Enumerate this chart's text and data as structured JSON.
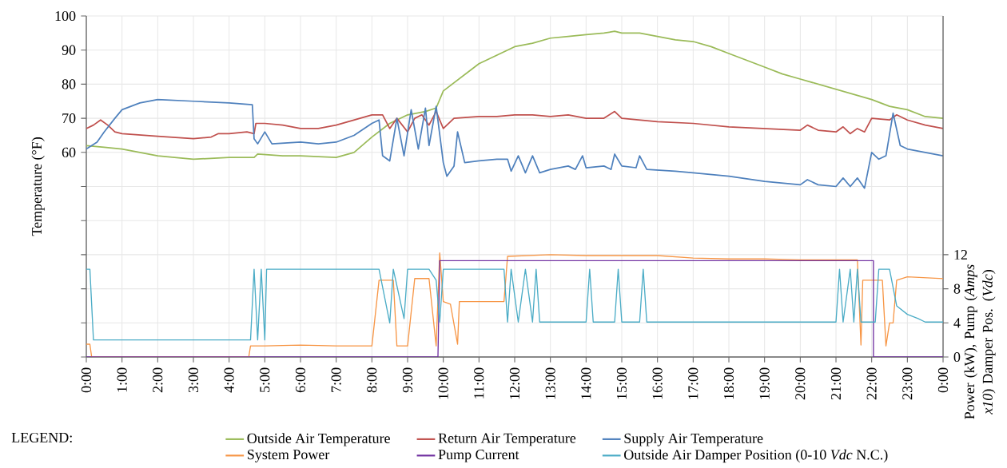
{
  "chart_data": {
    "type": "line",
    "ylabel": "Temperature (°F)",
    "y2label": "Power (kW), Pump (*Amps x10*) Damper Pos. (*Vdc*)",
    "legend_title": "LEGEND:",
    "legend": "bottom",
    "grid": true,
    "xlim": [
      0,
      24
    ],
    "xticks": [
      {
        "value": 0,
        "label": "0:00"
      },
      {
        "value": 1,
        "label": "1:00"
      },
      {
        "value": 2,
        "label": "2:00"
      },
      {
        "value": 3,
        "label": "3:00"
      },
      {
        "value": 4,
        "label": "4:00"
      },
      {
        "value": 5,
        "label": "5:00"
      },
      {
        "value": 6,
        "label": "6:00"
      },
      {
        "value": 7,
        "label": "7:00"
      },
      {
        "value": 8,
        "label": "8:00"
      },
      {
        "value": 9,
        "label": "9:00"
      },
      {
        "value": 10,
        "label": "10:00"
      },
      {
        "value": 11,
        "label": "11:00"
      },
      {
        "value": 12,
        "label": "12:00"
      },
      {
        "value": 13,
        "label": "13:00"
      },
      {
        "value": 14,
        "label": "14:00"
      },
      {
        "value": 15,
        "label": "15:00"
      },
      {
        "value": 16,
        "label": "16:00"
      },
      {
        "value": 17,
        "label": "17:00"
      },
      {
        "value": 18,
        "label": "18:00"
      },
      {
        "value": 19,
        "label": "19:00"
      },
      {
        "value": 20,
        "label": "20:00"
      },
      {
        "value": 21,
        "label": "21:00"
      },
      {
        "value": 22,
        "label": "22:00"
      },
      {
        "value": 23,
        "label": "23:00"
      },
      {
        "value": 24,
        "label": "0:00"
      }
    ],
    "ylim": [
      0,
      100
    ],
    "yticks": [
      {
        "value": 0,
        "label": null
      },
      {
        "value": 10,
        "label": null
      },
      {
        "value": 20,
        "label": null
      },
      {
        "value": 30,
        "label": null
      },
      {
        "value": 40,
        "label": null
      },
      {
        "value": 50,
        "label": null
      },
      60,
      70,
      80,
      90,
      100
    ],
    "y2lim": [
      0,
      40
    ],
    "y2ticks": [
      0,
      4,
      8,
      12
    ],
    "series": [
      {
        "name": "Outside Air Temperature",
        "color": "#9bbb59",
        "x": [
          0,
          0.5,
          1,
          2,
          3,
          4,
          4.7,
          4.8,
          5.5,
          6,
          7,
          7.5,
          8,
          8.5,
          9,
          9.5,
          9.8,
          10,
          10.5,
          11,
          11.5,
          12,
          12.5,
          13,
          13.5,
          14,
          14.5,
          14.8,
          15,
          15.5,
          16,
          16.5,
          17,
          17.5,
          18,
          18.5,
          19,
          19.5,
          20,
          20.5,
          21,
          21.5,
          22,
          22.5,
          23,
          23.5,
          24
        ],
        "values": [
          62,
          61.5,
          61,
          59,
          58,
          58.5,
          58.5,
          59.5,
          59,
          59,
          58.5,
          60,
          64.5,
          68.5,
          71,
          72,
          73,
          78,
          82,
          86,
          88.5,
          91,
          92,
          93.5,
          94,
          94.5,
          95,
          95.5,
          95,
          95,
          94,
          93,
          92.5,
          91,
          89,
          87,
          85,
          83,
          81.5,
          80,
          78.5,
          77,
          75.5,
          73.5,
          72.5,
          70.5,
          70
        ]
      },
      {
        "name": "Return Air Temperature",
        "color": "#c0504d",
        "x": [
          0,
          0.2,
          0.4,
          0.6,
          0.8,
          1,
          2,
          3,
          3.5,
          3.7,
          4,
          4.5,
          4.7,
          4.75,
          5,
          5.5,
          6,
          6.5,
          7,
          7.5,
          8,
          8.3,
          8.5,
          8.7,
          9,
          9.2,
          9.4,
          9.6,
          9.8,
          10,
          10.3,
          11,
          11.5,
          12,
          12.5,
          13,
          13.5,
          14,
          14.5,
          14.8,
          15,
          15.5,
          16,
          17,
          18,
          19,
          20,
          20.2,
          20.5,
          21,
          21.2,
          21.4,
          21.6,
          21.8,
          22,
          22.5,
          22.7,
          23,
          23.5,
          24
        ],
        "values": [
          67,
          68,
          69.5,
          68,
          66,
          65.5,
          64.7,
          64,
          64.5,
          65.5,
          65.5,
          66,
          65.5,
          68.5,
          68.5,
          68,
          67,
          67,
          68,
          69.5,
          71,
          71,
          67,
          70,
          66,
          70,
          71,
          68,
          72,
          67,
          70,
          70.5,
          70.5,
          71,
          71,
          70.5,
          71,
          70,
          70,
          72,
          70,
          69.5,
          69,
          68.5,
          67.5,
          67,
          66.5,
          68,
          66.5,
          66,
          67.5,
          65.5,
          67,
          66,
          70,
          69.5,
          71,
          69.5,
          68,
          67
        ]
      },
      {
        "name": "Supply Air Temperature",
        "color": "#4f81bd",
        "x": [
          0,
          0.3,
          0.5,
          0.8,
          1,
          1.5,
          2,
          3,
          4,
          4.65,
          4.7,
          4.8,
          5,
          5.2,
          6,
          6.5,
          7,
          7.5,
          8,
          8.2,
          8.3,
          8.5,
          8.7,
          8.9,
          9.1,
          9.3,
          9.5,
          9.6,
          9.8,
          10,
          10.1,
          10.3,
          10.4,
          10.6,
          11,
          11.5,
          11.8,
          11.9,
          12.1,
          12.3,
          12.5,
          12.7,
          13,
          13.5,
          13.7,
          13.9,
          14,
          14.5,
          14.7,
          14.8,
          15,
          15.4,
          15.5,
          15.7,
          16.5,
          17,
          18,
          19,
          20,
          20.2,
          20.5,
          21,
          21.2,
          21.4,
          21.6,
          21.8,
          22,
          22.2,
          22.4,
          22.6,
          22.8,
          23,
          23.5,
          24
        ],
        "values": [
          61,
          63,
          66,
          70,
          72.5,
          74.5,
          75.5,
          75,
          74.5,
          74,
          64,
          62.5,
          66,
          62.5,
          63,
          62.5,
          63,
          65,
          68.5,
          69.5,
          59,
          57.5,
          70,
          59,
          72.5,
          61,
          73,
          62,
          73.5,
          57,
          53,
          56,
          66,
          57,
          57.5,
          58,
          58,
          54.5,
          59,
          54,
          59,
          54,
          55,
          56,
          55,
          59,
          55.5,
          56,
          55,
          59.5,
          56,
          55.5,
          59,
          55,
          54.5,
          54,
          53,
          51.5,
          50.5,
          52,
          50.5,
          50,
          52.5,
          50,
          52.5,
          49.5,
          60,
          58,
          59,
          71.5,
          62,
          61,
          60,
          59
        ]
      },
      {
        "name": "System Power",
        "color": "#f79646",
        "axis": "y2",
        "x": [
          0,
          0.1,
          0.15,
          4.55,
          4.6,
          5,
          6,
          7,
          8,
          8.2,
          8.6,
          8.7,
          9,
          9.2,
          9.6,
          9.8,
          9.9,
          10,
          10.2,
          10.4,
          10.45,
          11,
          11.7,
          11.8,
          13,
          14,
          15,
          16,
          17,
          18,
          19,
          20,
          21,
          21.6,
          21.7,
          21.75,
          22.3,
          22.4,
          22.5,
          22.6,
          22.7,
          23,
          24
        ],
        "values": [
          1.5,
          1.5,
          0,
          0,
          1.3,
          1.3,
          1.4,
          1.3,
          1.3,
          9,
          9,
          1.3,
          1.3,
          9.2,
          9.2,
          1.3,
          12.2,
          6.5,
          6.2,
          1.5,
          6.5,
          6.5,
          6.5,
          11.8,
          12,
          11.9,
          11.9,
          11.9,
          11.6,
          11.5,
          11.5,
          11.4,
          11.4,
          11.4,
          1.4,
          9,
          9,
          1.3,
          4,
          4,
          9,
          9.4,
          9.2
        ]
      },
      {
        "name": "Pump Current",
        "color": "#7030a0",
        "axis": "y2",
        "x": [
          0,
          9.85,
          9.9,
          22.05,
          22.05,
          24
        ],
        "values": [
          0,
          0,
          11.3,
          11.3,
          0,
          0
        ]
      },
      {
        "name": "Outside Air Damper Position (0-10 *Vdc* N.C.)",
        "color": "#4bacc6",
        "axis": "y2",
        "x": [
          0,
          0.1,
          0.2,
          4.6,
          4.7,
          4.8,
          4.9,
          5,
          5.05,
          8.2,
          8.5,
          8.6,
          8.9,
          9,
          9.6,
          9.8,
          9.9,
          10,
          11.7,
          11.8,
          11.9,
          12.1,
          12.3,
          12.5,
          12.6,
          12.7,
          14,
          14.1,
          14.2,
          14.8,
          14.9,
          15,
          15.5,
          15.6,
          15.7,
          21,
          21.1,
          21.2,
          21.4,
          21.5,
          21.6,
          21.7,
          22.1,
          22.2,
          22.5,
          22.7,
          23,
          23.3,
          23.5,
          24
        ],
        "values": [
          10.3,
          10.3,
          2,
          2,
          10.3,
          2,
          10.3,
          2,
          10.3,
          10.3,
          4,
          10.3,
          4.5,
          10.3,
          10.3,
          9,
          4.1,
          10.3,
          10.3,
          4.1,
          10.3,
          4.1,
          10.3,
          4.1,
          10.3,
          4.1,
          4.1,
          10.3,
          4.1,
          4.1,
          10.3,
          4.1,
          4.1,
          10.3,
          4.1,
          4.1,
          10.3,
          4.1,
          10.3,
          4.1,
          10.3,
          4.1,
          4.1,
          10.3,
          10.3,
          6,
          5,
          4.5,
          4.1,
          4.1
        ]
      }
    ]
  }
}
